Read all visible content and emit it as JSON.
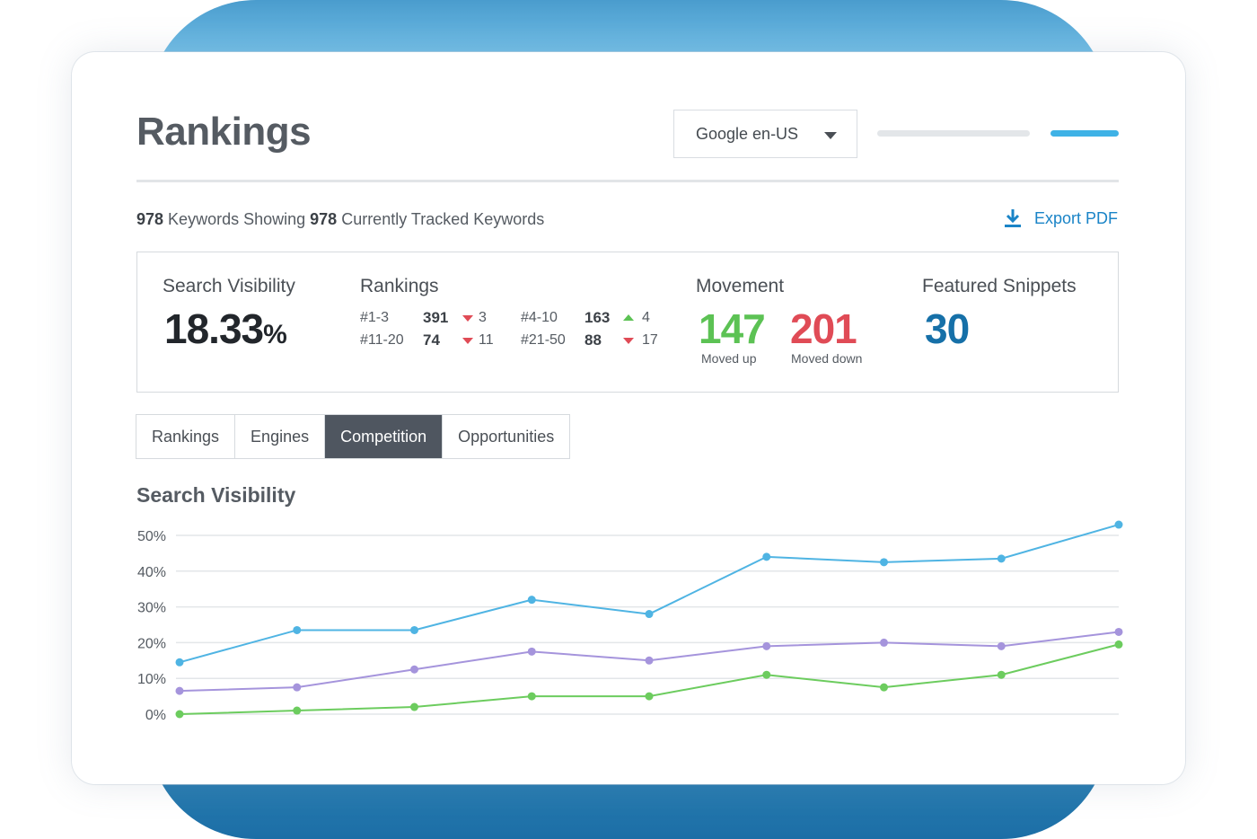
{
  "header": {
    "title": "Rankings",
    "engine_select": "Google en-US"
  },
  "summary": {
    "count_showing": "978",
    "text_showing": " Keywords Showing ",
    "count_tracked": "978",
    "text_tracked": " Currently Tracked Keywords"
  },
  "export_label": "Export PDF",
  "stats": {
    "search_visibility": {
      "label": "Search Visibility",
      "value": "18.33",
      "unit": "%"
    },
    "rankings": {
      "label": "Rankings",
      "rows": [
        {
          "range": "#1-3",
          "count": "391",
          "direction": "down",
          "delta": "3"
        },
        {
          "range": "#4-10",
          "count": "163",
          "direction": "up",
          "delta": "4"
        },
        {
          "range": "#11-20",
          "count": "74",
          "direction": "down",
          "delta": "11"
        },
        {
          "range": "#21-50",
          "count": "88",
          "direction": "down",
          "delta": "17"
        }
      ]
    },
    "movement": {
      "label": "Movement",
      "up_value": "147",
      "up_label": "Moved up",
      "down_value": "201",
      "down_label": "Moved down"
    },
    "featured_snippets": {
      "label": "Featured Snippets",
      "value": "30"
    }
  },
  "tabs": [
    {
      "label": "Rankings",
      "active": false
    },
    {
      "label": "Engines",
      "active": false
    },
    {
      "label": "Competition",
      "active": true
    },
    {
      "label": "Opportunities",
      "active": false
    }
  ],
  "colors": {
    "accent": "#1a84c7",
    "up": "#5cc254",
    "down": "#e04b56",
    "snippets": "#1670a8",
    "active_tab": "#4f5660"
  },
  "chart_data": {
    "type": "line",
    "title": "Search Visibility",
    "ylim": [
      0,
      50
    ],
    "yticks": [
      "50%",
      "40%",
      "30%",
      "20%",
      "10%",
      "0%"
    ],
    "ytick_values": [
      50,
      40,
      30,
      20,
      10,
      0
    ],
    "x": [
      1,
      2,
      3,
      4,
      5,
      6,
      7,
      8,
      9
    ],
    "grid": true,
    "series": [
      {
        "color": "#4fb4e3",
        "values": [
          14.5,
          23.5,
          23.5,
          32,
          28,
          44,
          42.5,
          43.5,
          53
        ]
      },
      {
        "color": "#a594dc",
        "values": [
          6.5,
          7.5,
          12.5,
          17.5,
          15,
          19,
          20,
          19,
          23
        ]
      },
      {
        "color": "#6ccc5e",
        "values": [
          0,
          1,
          2,
          5,
          5,
          11,
          7.5,
          11,
          19.5
        ]
      }
    ]
  }
}
